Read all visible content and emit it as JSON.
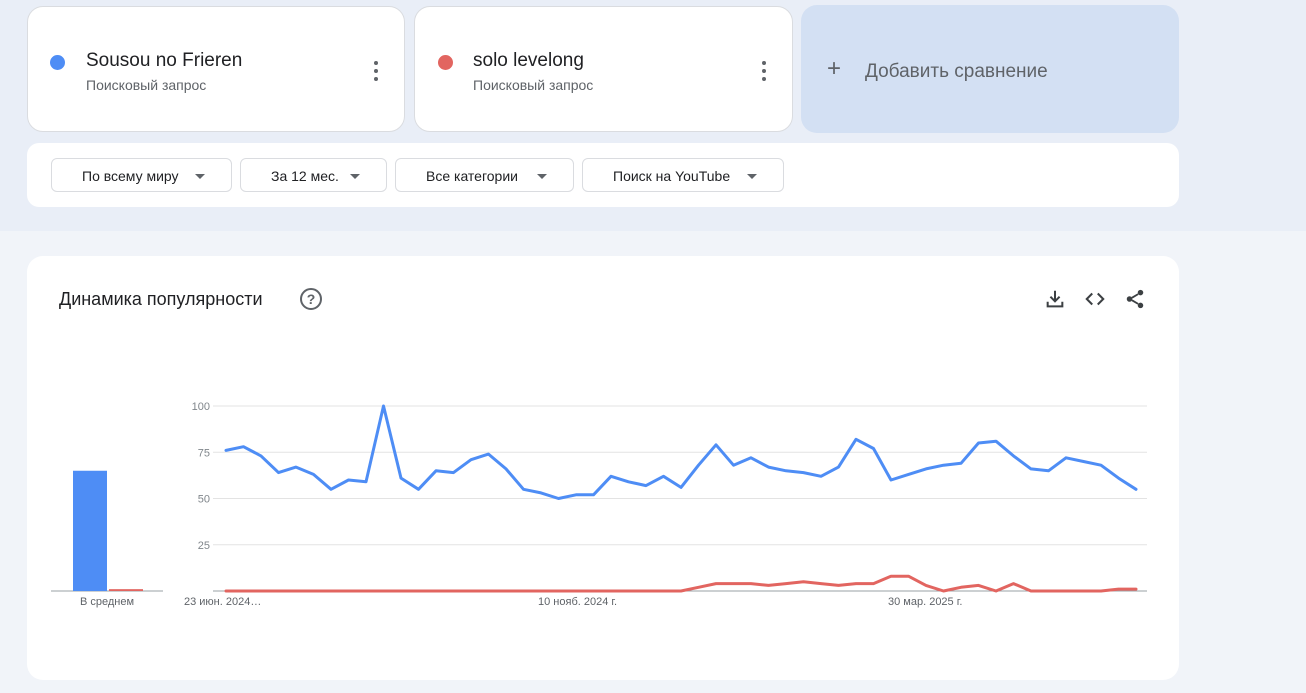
{
  "terms": [
    {
      "name": "Sousou no Frieren",
      "type": "Поисковый запрос",
      "color": "#4e8df5"
    },
    {
      "name": "solo levelong",
      "type": "Поисковый запрос",
      "color": "#e26560"
    }
  ],
  "add_comparison": {
    "label": "Добавить сравнение",
    "icon": "plus-icon"
  },
  "filters": [
    {
      "label": "По всему миру"
    },
    {
      "label": "За 12 мес."
    },
    {
      "label": "Все категории"
    },
    {
      "label": "Поиск на YouTube"
    }
  ],
  "chart_card": {
    "title": "Динамика популярности",
    "help_icon": "help-circle-icon",
    "tools": [
      "download-icon",
      "embed-code-icon",
      "share-icon"
    ]
  },
  "chart_data": [
    {
      "type": "bar",
      "categories": [
        "В среднем"
      ],
      "series": [
        {
          "name": "Sousou no Frieren",
          "values": [
            65
          ]
        },
        {
          "name": "solo levelong",
          "values": [
            1
          ]
        }
      ],
      "ylim": [
        0,
        100
      ]
    },
    {
      "type": "line",
      "x_ticks": [
        "23 июн. 2024…",
        "10 нояб. 2024 г.",
        "30 мар. 2025 г."
      ],
      "x_tick_index": [
        0,
        20,
        40
      ],
      "y_ticks": [
        25,
        50,
        75,
        100
      ],
      "ylim": [
        0,
        100
      ],
      "grid": true,
      "series": [
        {
          "name": "Sousou no Frieren",
          "values": [
            76,
            78,
            73,
            64,
            67,
            63,
            55,
            60,
            59,
            100,
            61,
            55,
            65,
            64,
            71,
            74,
            66,
            55,
            53,
            50,
            52,
            52,
            62,
            59,
            57,
            62,
            56,
            68,
            79,
            68,
            72,
            67,
            65,
            64,
            62,
            67,
            82,
            77,
            60,
            63,
            66,
            68,
            69,
            80,
            81,
            73,
            66,
            65,
            72,
            70,
            68,
            61,
            55
          ]
        },
        {
          "name": "solo levelong",
          "values": [
            0,
            0,
            0,
            0,
            0,
            0,
            0,
            0,
            0,
            0,
            0,
            0,
            0,
            0,
            0,
            0,
            0,
            0,
            0,
            0,
            0,
            0,
            0,
            0,
            0,
            0,
            0,
            2,
            4,
            4,
            4,
            3,
            4,
            5,
            4,
            3,
            4,
            4,
            8,
            8,
            3,
            0,
            2,
            3,
            0,
            4,
            0,
            0,
            0,
            0,
            0,
            1,
            1
          ]
        }
      ]
    }
  ]
}
